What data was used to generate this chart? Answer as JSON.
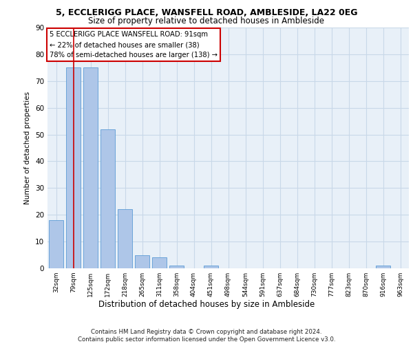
{
  "title1": "5, ECCLERIGG PLACE, WANSFELL ROAD, AMBLESIDE, LA22 0EG",
  "title2": "Size of property relative to detached houses in Ambleside",
  "xlabel": "Distribution of detached houses by size in Ambleside",
  "ylabel": "Number of detached properties",
  "categories": [
    "32sqm",
    "79sqm",
    "125sqm",
    "172sqm",
    "218sqm",
    "265sqm",
    "311sqm",
    "358sqm",
    "404sqm",
    "451sqm",
    "498sqm",
    "544sqm",
    "591sqm",
    "637sqm",
    "684sqm",
    "730sqm",
    "777sqm",
    "823sqm",
    "870sqm",
    "916sqm",
    "963sqm"
  ],
  "values": [
    18,
    75,
    75,
    52,
    22,
    5,
    4,
    1,
    0,
    1,
    0,
    0,
    0,
    0,
    0,
    0,
    0,
    0,
    0,
    1,
    0
  ],
  "bar_color": "#aec6e8",
  "bar_edge_color": "#5b9bd5",
  "grid_color": "#c8d8e8",
  "vline_x": 1.0,
  "vline_color": "#cc0000",
  "annotation_text": "5 ECCLERIGG PLACE WANSFELL ROAD: 91sqm\n← 22% of detached houses are smaller (38)\n78% of semi-detached houses are larger (138) →",
  "annotation_box_color": "#ffffff",
  "annotation_border_color": "#cc0000",
  "ylim": [
    0,
    90
  ],
  "yticks": [
    0,
    10,
    20,
    30,
    40,
    50,
    60,
    70,
    80,
    90
  ],
  "footnote": "Contains HM Land Registry data © Crown copyright and database right 2024.\nContains public sector information licensed under the Open Government Licence v3.0.",
  "plot_bg_color": "#e8f0f8",
  "fig_bg_color": "#ffffff"
}
